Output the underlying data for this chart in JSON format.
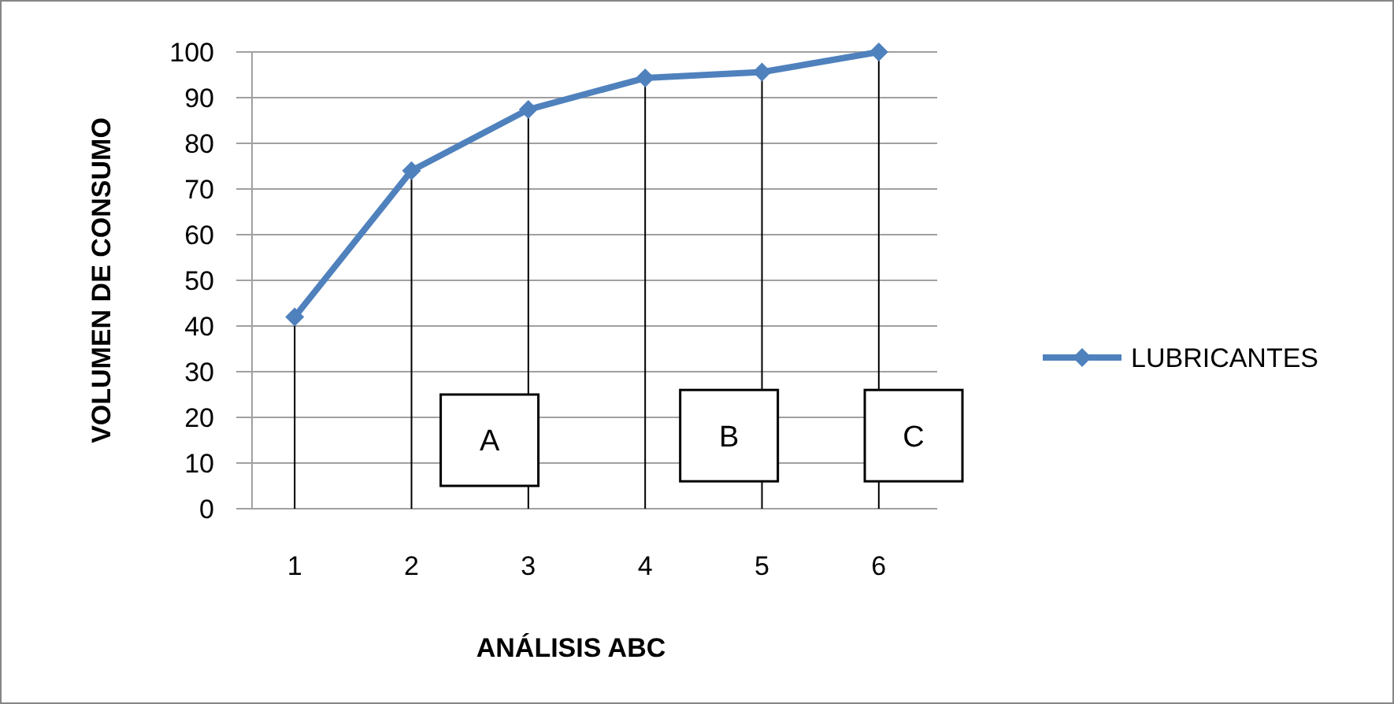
{
  "chart_data": {
    "type": "line",
    "xlabel": "ANÁLISIS ABC",
    "ylabel": "VOLUMEN DE CONSUMO",
    "categories": [
      "1",
      "2",
      "3",
      "4",
      "5",
      "6"
    ],
    "series": [
      {
        "name": "LUBRICANTES",
        "color": "#4f81bd",
        "values": [
          42,
          74,
          87.4,
          94.3,
          95.6,
          100
        ]
      }
    ],
    "ylim": [
      0,
      100
    ],
    "yticks": [
      0,
      10,
      20,
      30,
      40,
      50,
      60,
      70,
      80,
      90,
      100
    ],
    "grid": "y",
    "legend": "right",
    "marker": "diamond",
    "line_style": "solid",
    "ref_lines": [
      {
        "axis": "x",
        "value": "1",
        "color": "#000000"
      },
      {
        "axis": "x",
        "value": "2",
        "color": "#000000"
      },
      {
        "axis": "x",
        "value": "3",
        "color": "#000000"
      },
      {
        "axis": "x",
        "value": "4",
        "color": "#000000"
      },
      {
        "axis": "x",
        "value": "5",
        "color": "#000000"
      },
      {
        "axis": "x",
        "value": "6",
        "color": "#000000"
      }
    ],
    "annotations": [
      "A",
      "B",
      "C"
    ]
  }
}
